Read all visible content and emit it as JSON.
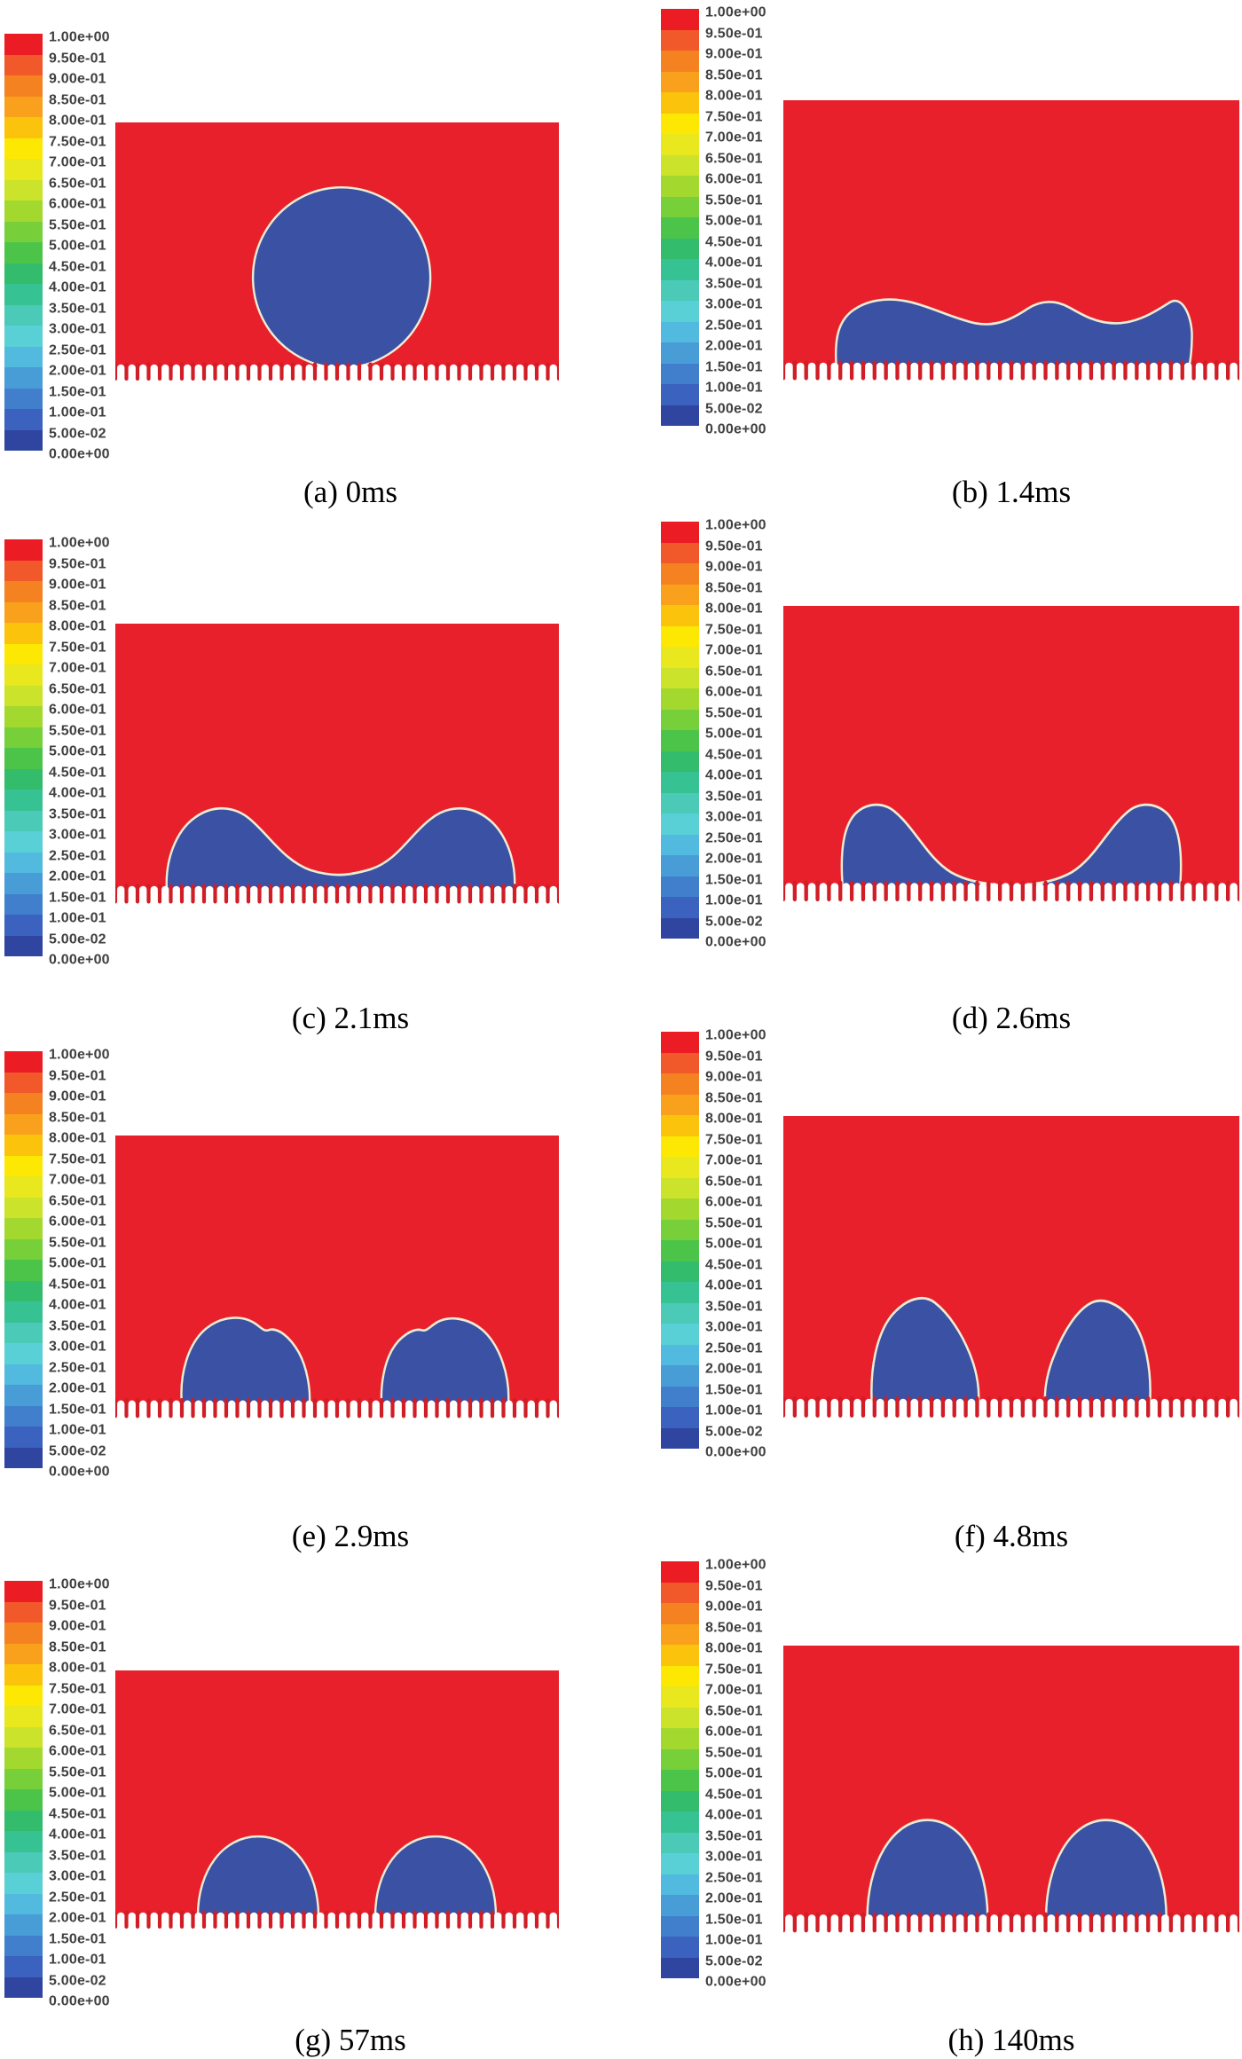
{
  "figure": {
    "description": "Volume fraction contour snapshots of a droplet impacting a micro-structured surface at eight times",
    "colors": {
      "background": "#ffffff",
      "fluid": "#e8202b",
      "tooth": "#d01d26",
      "droplet": "#3b52a4",
      "interface": "#f0ecd4",
      "label_text": "#404040",
      "caption_text": "#000000"
    },
    "legend": {
      "labels": [
        "1.00e+00",
        "9.50e-01",
        "9.00e-01",
        "8.50e-01",
        "8.00e-01",
        "7.50e-01",
        "7.00e-01",
        "6.50e-01",
        "6.00e-01",
        "5.50e-01",
        "5.00e-01",
        "4.50e-01",
        "4.00e-01",
        "3.50e-01",
        "3.00e-01",
        "2.50e-01",
        "2.00e-01",
        "1.50e-01",
        "1.00e-01",
        "5.00e-02",
        "0.00e+00"
      ],
      "band_colors": [
        "#ec1c24",
        "#f1582a",
        "#f58220",
        "#f9a11d",
        "#fbc30c",
        "#fde803",
        "#e9e71e",
        "#cbe32a",
        "#a3d92e",
        "#77cf3a",
        "#4cc44a",
        "#32bc6c",
        "#37c293",
        "#4bcab8",
        "#59d0d6",
        "#51bade",
        "#499dd6",
        "#417fcc",
        "#3a62be",
        "#30459f"
      ]
    },
    "panels": [
      {
        "label": "a",
        "caption": "(a) 0ms",
        "droplets": [
          "M255,72 a100,100 0 1,0 0.2,0 Z"
        ]
      },
      {
        "label": "b",
        "caption": "(b) 1.4ms",
        "droplets": [
          "M58,272 C56,244 60,226 76,215 C92,204 114,201 138,206 C162,211 186,223 211,228 C234,232 252,223 268,213 C283,204 299,204 314,212 C329,220 344,228 364,228 C388,228 408,216 423,207 C438,198 448,222 448,240 C448,252 447,263 445,272 Z"
        ]
      },
      {
        "label": "c",
        "caption": "(c) 2.1ms",
        "droplets": [
          "M58,272 C56,242 68,212 90,198 C110,185 134,186 152,200 C175,218 190,242 220,252 C245,259 262,258 288,251 C318,242 332,216 355,200 C374,186 398,185 418,198 C440,212 452,242 450,272 Z"
        ]
      },
      {
        "label": "d",
        "caption": "(d) 2.6ms",
        "droplets": [
          "M65,272 C62,238 66,214 78,202 C90,191 108,189 122,199 C145,216 158,244 184,258 C204,268 226,269 241,271 L243,272 Z",
          "M257,272 L259,271 C274,269 296,268 316,258 C342,244 355,216 378,199 C392,189 410,191 422,202 C434,214 438,238 435,272 Z"
        ]
      },
      {
        "label": "e",
        "caption": "(e) 2.9ms",
        "droplets": [
          "M75,272 C72,242 82,210 103,195 C120,183 141,182 155,189 C163,193 167,199 173,197 C183,194 197,204 207,220 C216,235 220,256 219,272 Z",
          "M300,272 C299,252 303,231 312,217 C321,203 336,195 345,197 C351,199 355,193 363,189 C377,182 398,185 414,197 C434,213 445,244 443,272 Z"
        ]
      },
      {
        "label": "f",
        "caption": "(f) 4.8ms",
        "droplets": [
          "M97,272 C95,240 102,208 118,190 C133,174 153,168 166,177 C181,187 196,206 206,229 C213,245 215,261 214,272 Z",
          "M287,272 C286,258 290,241 298,225 C308,203 322,185 336,178 C350,171 368,178 382,193 C397,210 404,240 402,272 Z"
        ]
      },
      {
        "label": "g",
        "caption": "(g) 57ms",
        "droplets": [
          "M93,272 C93,222 121,184 161,184 C201,184 229,222 229,272 Z",
          "M293,272 C293,222 321,184 361,184 C401,184 429,222 429,272 Z"
        ]
      },
      {
        "label": "h",
        "caption": "(h) 140ms",
        "droplets": [
          "M92,272 C92,218 119,174 158,174 C197,174 224,218 224,272 Z",
          "M288,272 C288,218 315,174 354,174 C393,174 420,218 420,272 Z"
        ]
      }
    ]
  }
}
